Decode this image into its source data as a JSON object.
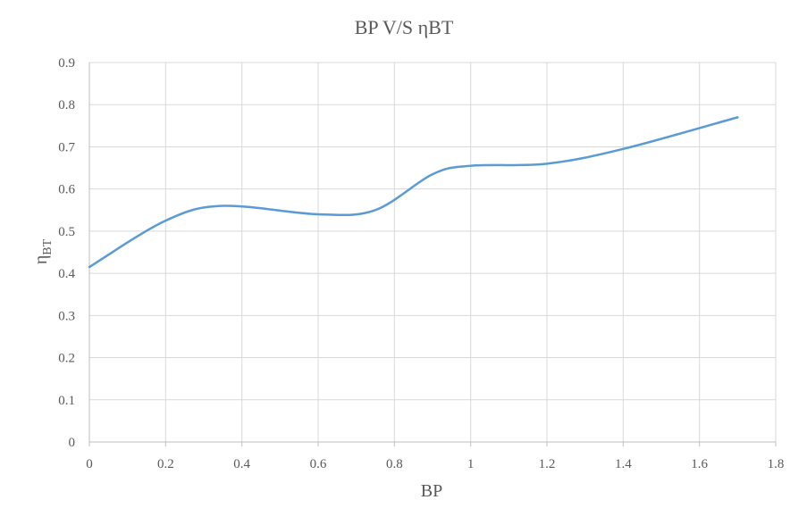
{
  "chart_data": {
    "type": "line",
    "title": "BP V/S ηBT",
    "xlabel": "BP",
    "ylabel": "η",
    "ylabel_subscript": "BT",
    "xlim": [
      0,
      1.8
    ],
    "ylim": [
      0,
      0.9
    ],
    "x_ticks": [
      "0",
      "0.2",
      "0.4",
      "0.6",
      "0.8",
      "1",
      "1.2",
      "1.4",
      "1.6",
      "1.8"
    ],
    "y_ticks": [
      "0",
      "0.1",
      "0.2",
      "0.3",
      "0.4",
      "0.5",
      "0.6",
      "0.7",
      "0.8",
      "0.9"
    ],
    "grid": true,
    "smooth": true,
    "series": [
      {
        "color": "#5b9bd5",
        "x": [
          0,
          0.2,
          0.35,
          0.6,
          0.75,
          0.9,
          1.0,
          1.2,
          1.4,
          1.7
        ],
        "y": [
          0.415,
          0.525,
          0.56,
          0.54,
          0.55,
          0.635,
          0.655,
          0.66,
          0.695,
          0.77
        ]
      }
    ]
  }
}
